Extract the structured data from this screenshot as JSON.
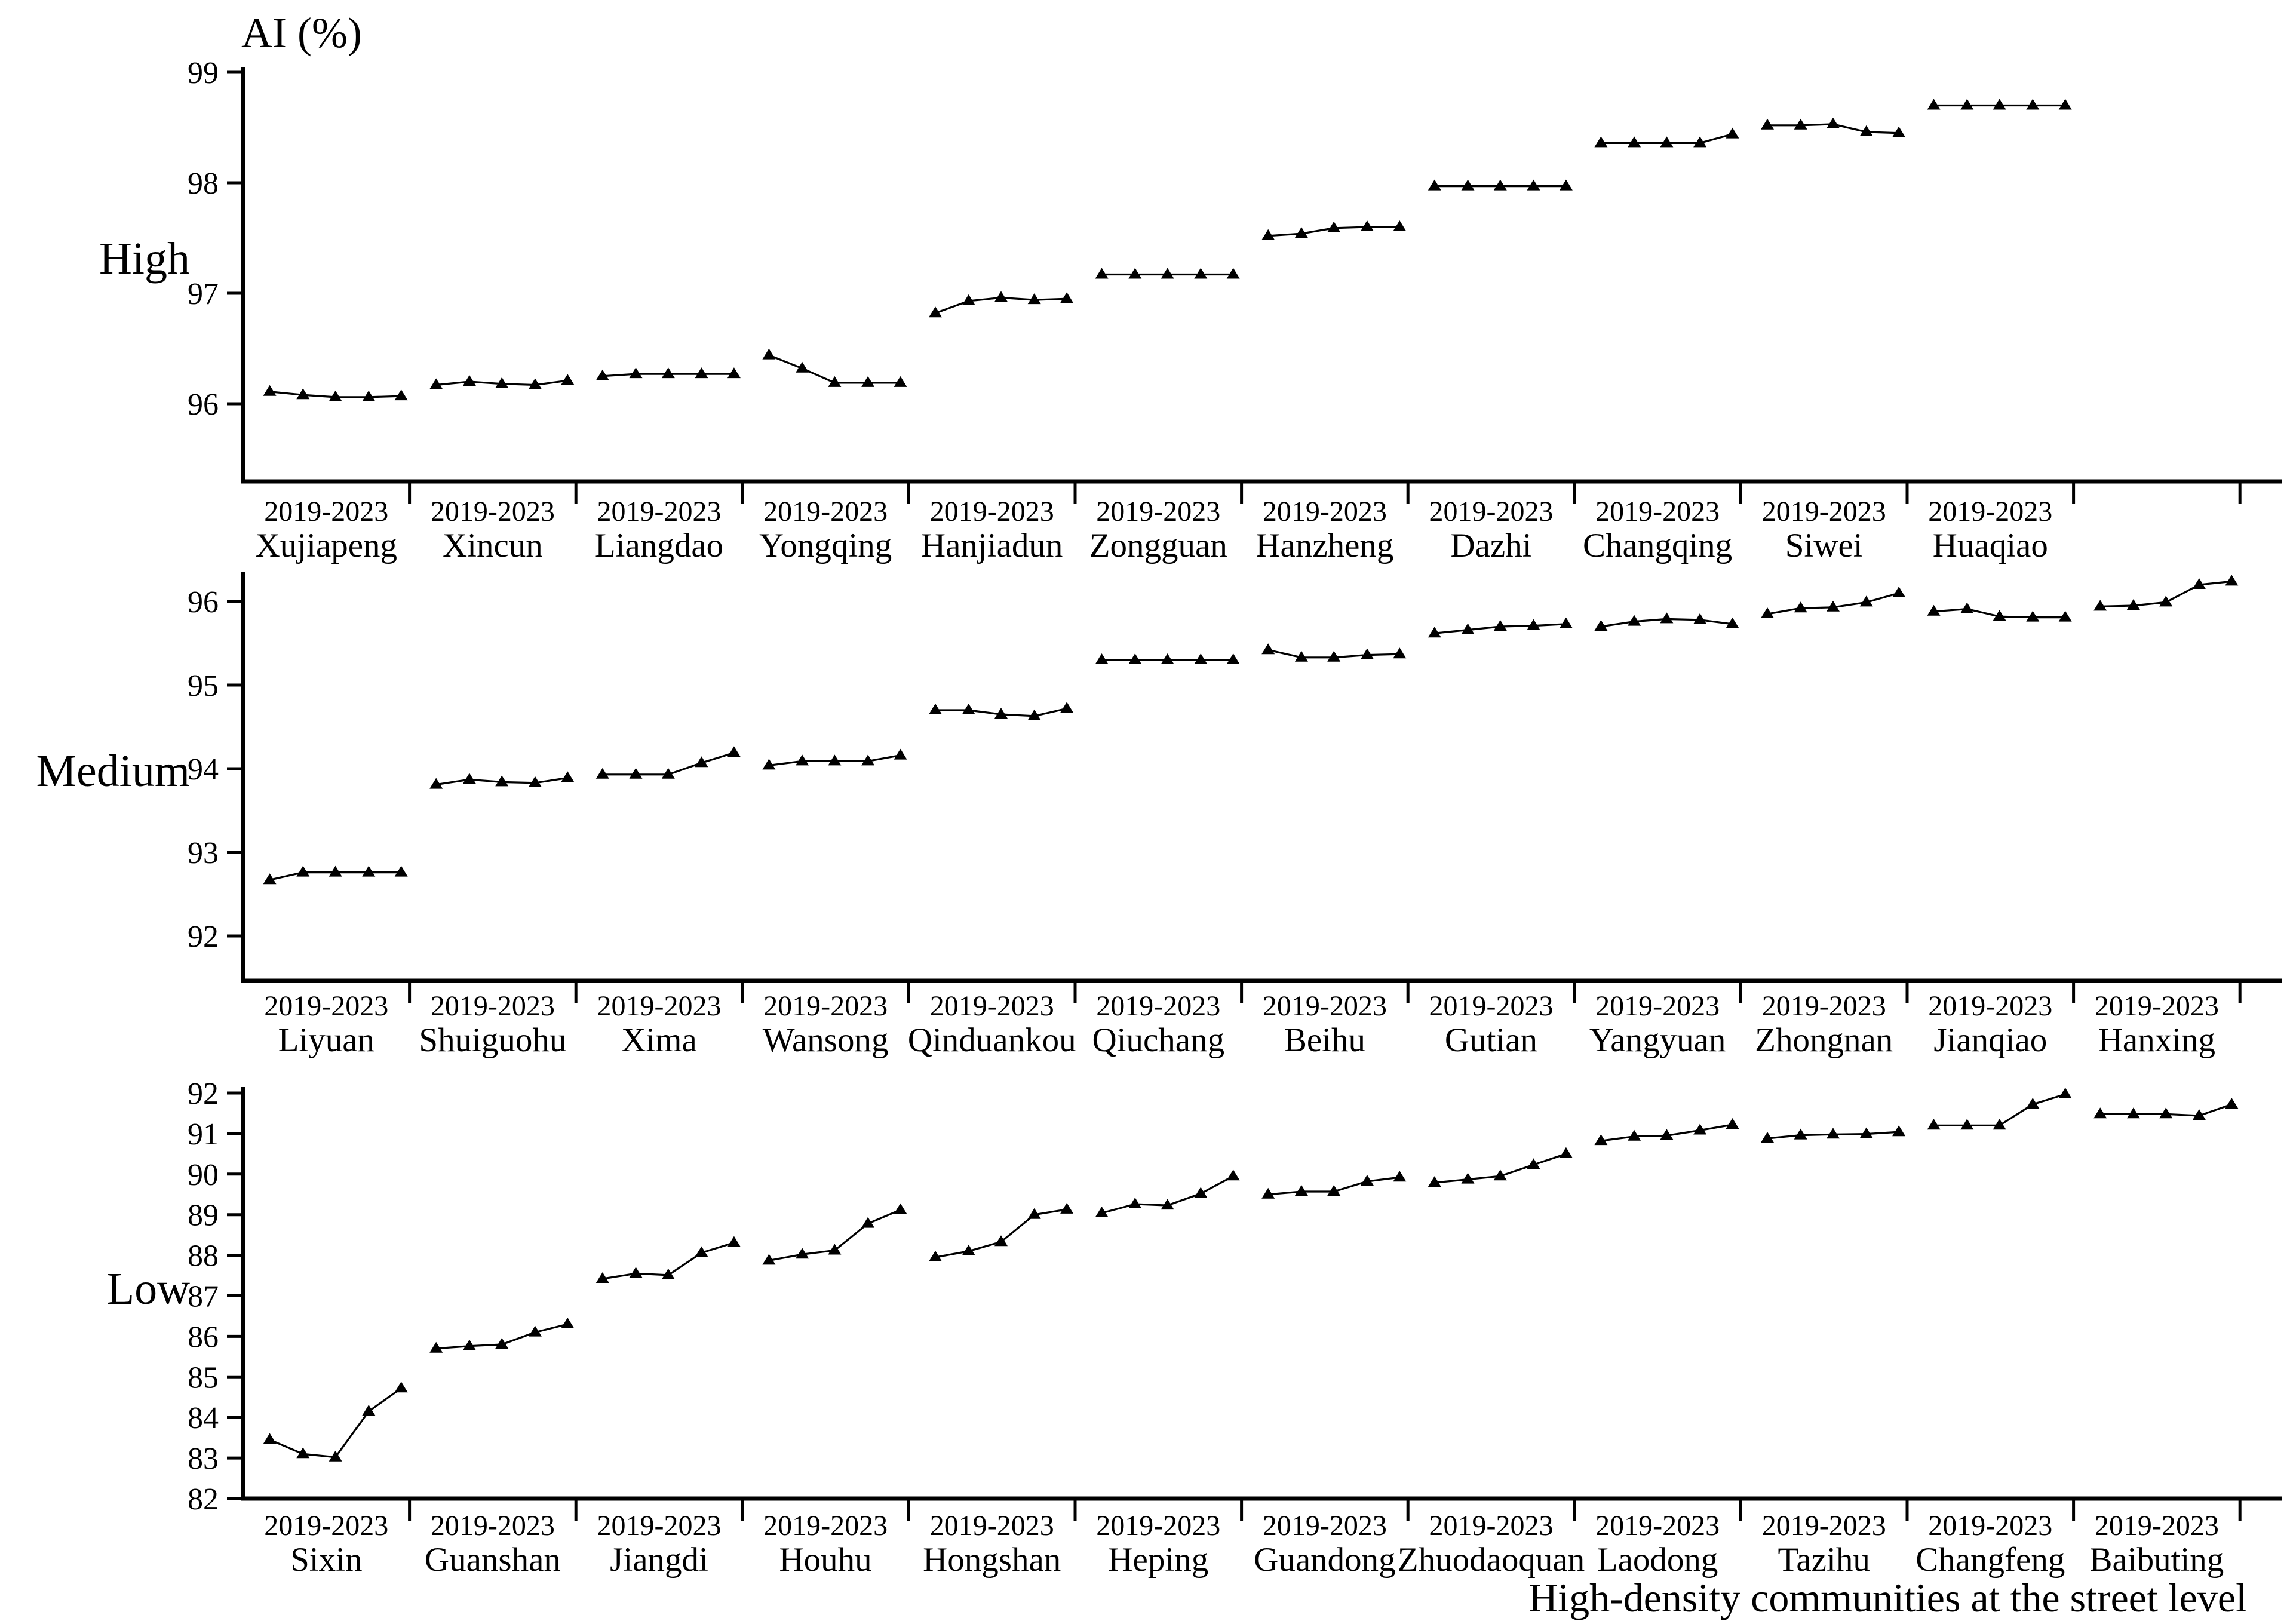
{
  "figure": {
    "y_axis_title": "AI (%)",
    "x_axis_title": "High-density communities at the street level",
    "period_label": "2019-2023",
    "line_color": "#000000",
    "background_color": "#ffffff",
    "marker": "triangle-up-icon"
  },
  "chart_data": [
    {
      "type": "line",
      "panel": "High",
      "ylabel": "AI (%)",
      "xlabel": "High-density communities at the street level",
      "x_group_tick_label": "2019-2023",
      "ylim": [
        95.3,
        99.1
      ],
      "yticks": [
        96,
        97,
        98,
        99
      ],
      "x_slots": 12,
      "empty_trailing_slots": 1,
      "grid": "off",
      "legend": "none",
      "series": [
        {
          "name": "Xujiapeng",
          "values": [
            96.11,
            96.08,
            96.06,
            96.06,
            96.07
          ]
        },
        {
          "name": "Xincun",
          "values": [
            96.17,
            96.2,
            96.18,
            96.17,
            96.21
          ]
        },
        {
          "name": "Liangdao",
          "values": [
            96.25,
            96.27,
            96.27,
            96.27,
            96.27
          ]
        },
        {
          "name": "Yongqing",
          "values": [
            96.44,
            96.32,
            96.19,
            96.19,
            96.19
          ]
        },
        {
          "name": "Hanjiadun",
          "values": [
            96.82,
            96.93,
            96.96,
            96.94,
            96.95
          ]
        },
        {
          "name": "Zongguan",
          "values": [
            97.17,
            97.17,
            97.17,
            97.17,
            97.17
          ]
        },
        {
          "name": "Hanzheng",
          "values": [
            97.52,
            97.54,
            97.59,
            97.6,
            97.6
          ]
        },
        {
          "name": "Dazhi",
          "values": [
            97.97,
            97.97,
            97.97,
            97.97,
            97.97
          ]
        },
        {
          "name": "Changqing",
          "values": [
            98.36,
            98.36,
            98.36,
            98.36,
            98.44
          ]
        },
        {
          "name": "Siwei",
          "values": [
            98.52,
            98.52,
            98.53,
            98.46,
            98.45
          ]
        },
        {
          "name": "Huaqiao",
          "values": [
            98.7,
            98.7,
            98.7,
            98.7,
            98.7
          ]
        }
      ]
    },
    {
      "type": "line",
      "panel": "Medium",
      "ylabel": "AI (%)",
      "xlabel": "High-density communities at the street level",
      "x_group_tick_label": "2019-2023",
      "ylim": [
        91.5,
        96.5
      ],
      "yticks": [
        92,
        93,
        94,
        95,
        96
      ],
      "x_slots": 12,
      "empty_trailing_slots": 0,
      "grid": "off",
      "legend": "none",
      "series": [
        {
          "name": "Liyuan",
          "values": [
            92.67,
            92.76,
            92.76,
            92.76,
            92.76
          ]
        },
        {
          "name": "Shuiguohu",
          "values": [
            93.81,
            93.87,
            93.84,
            93.83,
            93.89
          ]
        },
        {
          "name": "Xima",
          "values": [
            93.93,
            93.93,
            93.93,
            94.07,
            94.19
          ]
        },
        {
          "name": "Wansong",
          "values": [
            94.04,
            94.09,
            94.09,
            94.09,
            94.16
          ]
        },
        {
          "name": "Qinduankou",
          "values": [
            94.7,
            94.7,
            94.65,
            94.63,
            94.72
          ]
        },
        {
          "name": "Qiuchang",
          "values": [
            95.3,
            95.3,
            95.3,
            95.3,
            95.3
          ]
        },
        {
          "name": "Beihu",
          "values": [
            95.42,
            95.33,
            95.33,
            95.36,
            95.37
          ]
        },
        {
          "name": "Gutian",
          "values": [
            95.62,
            95.66,
            95.7,
            95.71,
            95.73
          ]
        },
        {
          "name": "Yangyuan",
          "values": [
            95.7,
            95.76,
            95.79,
            95.78,
            95.73
          ]
        },
        {
          "name": "Zhongnan",
          "values": [
            95.85,
            95.92,
            95.93,
            95.99,
            96.1
          ]
        },
        {
          "name": "Jianqiao",
          "values": [
            95.88,
            95.91,
            95.82,
            95.81,
            95.81
          ]
        },
        {
          "name": "Hanxing",
          "values": [
            95.94,
            95.95,
            95.99,
            96.2,
            96.24
          ]
        }
      ]
    },
    {
      "type": "line",
      "panel": "Low",
      "ylabel": "AI (%)",
      "xlabel": "High-density communities at the street level",
      "x_group_tick_label": "2019-2023",
      "ylim": [
        82,
        92.2
      ],
      "yticks": [
        82,
        83,
        84,
        85,
        86,
        87,
        88,
        89,
        90,
        91,
        92
      ],
      "x_slots": 12,
      "empty_trailing_slots": 0,
      "grid": "off",
      "legend": "none",
      "series": [
        {
          "name": "Sixin",
          "values": [
            83.45,
            83.1,
            83.02,
            84.15,
            84.72
          ]
        },
        {
          "name": "Guanshan",
          "values": [
            85.7,
            85.76,
            85.8,
            86.1,
            86.3
          ]
        },
        {
          "name": "Jiangdi",
          "values": [
            87.42,
            87.55,
            87.51,
            88.06,
            88.31
          ]
        },
        {
          "name": "Houhu",
          "values": [
            87.87,
            88.02,
            88.12,
            88.78,
            89.12
          ]
        },
        {
          "name": "Hongshan",
          "values": [
            87.95,
            88.1,
            88.33,
            89.0,
            89.13
          ]
        },
        {
          "name": "Heping",
          "values": [
            89.04,
            89.26,
            89.23,
            89.52,
            89.95
          ]
        },
        {
          "name": "Guandong",
          "values": [
            89.5,
            89.57,
            89.57,
            89.82,
            89.92
          ]
        },
        {
          "name": "Zhuodaoquan",
          "values": [
            89.79,
            89.87,
            89.95,
            90.23,
            90.5
          ]
        },
        {
          "name": "Laodong",
          "values": [
            90.82,
            90.93,
            90.95,
            91.08,
            91.22
          ]
        },
        {
          "name": "Tazihu",
          "values": [
            90.88,
            90.96,
            90.98,
            90.99,
            91.04
          ]
        },
        {
          "name": "Changfeng",
          "values": [
            91.2,
            91.2,
            91.2,
            91.72,
            91.97
          ]
        },
        {
          "name": "Baibuting",
          "values": [
            91.48,
            91.48,
            91.48,
            91.44,
            91.72
          ]
        }
      ]
    }
  ]
}
